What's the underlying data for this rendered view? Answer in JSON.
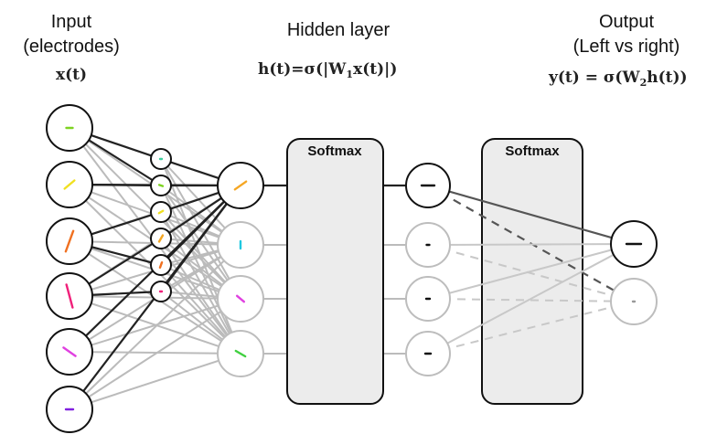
{
  "headers": {
    "input_line1": "Input",
    "input_line2": "(electrodes)",
    "input_formula": "x(t)",
    "hidden_title": "Hidden layer",
    "hidden_formula_pre": "h(t)=σ(|W",
    "hidden_formula_sub": "1",
    "hidden_formula_post": "x(t)|)",
    "output_line1": "Output",
    "output_line2": "(Left vs right)",
    "output_formula_pre": "y(t) = σ(W",
    "output_formula_sub": "2",
    "output_formula_post": "h(t))"
  },
  "softmax_boxes": [
    {
      "label": "Softmax"
    },
    {
      "label": "Softmax"
    }
  ],
  "colors": {
    "active_line": "#222222",
    "inactive_line": "#bbbbbb",
    "softmax_fill": "#ececec",
    "electrode_1": "#7ed321",
    "electrode_2": "#f0e020",
    "electrode_3": "#f07020",
    "electrode_4": "#f0207a",
    "electrode_5": "#e040e0",
    "electrode_6": "#8020e0",
    "hidden_1": "#f5a623",
    "hidden_2": "#20c8e0",
    "hidden_3": "#e040e0",
    "hidden_4": "#40d040"
  }
}
